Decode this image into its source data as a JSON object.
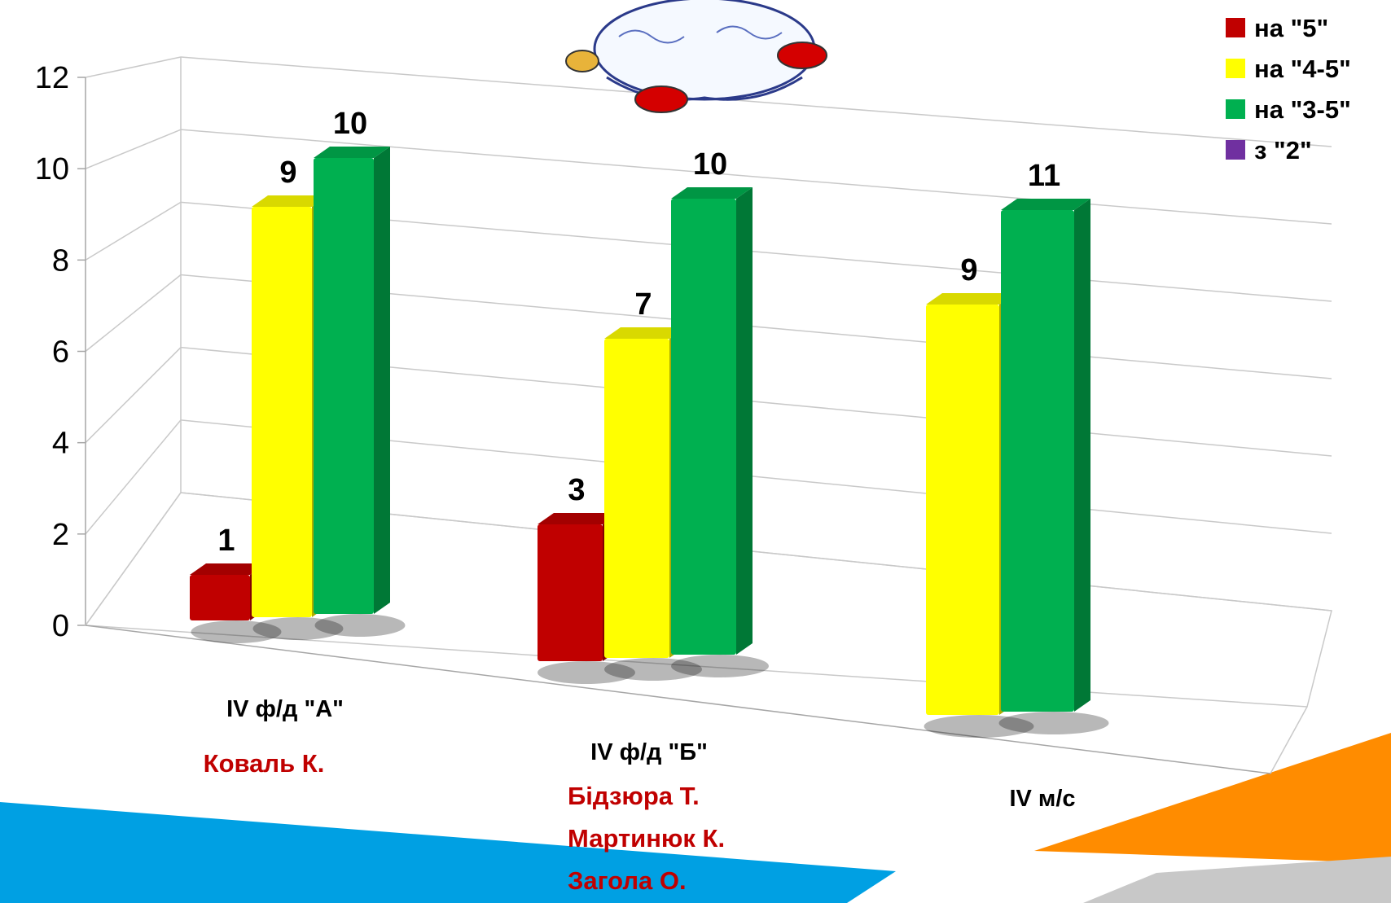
{
  "chart_data": {
    "type": "bar",
    "title": "",
    "xlabel": "",
    "ylabel": "",
    "ylim": [
      0,
      12
    ],
    "yticks": [
      0,
      2,
      4,
      6,
      8,
      10,
      12
    ],
    "grid": true,
    "legend_position": "top-right",
    "categories": [
      "IV ф/д \"А\"",
      "IV ф/д \"Б\"",
      "IV м/с"
    ],
    "series": [
      {
        "name": "на \"5\"",
        "color": "#c00000",
        "values": [
          1,
          3,
          null
        ]
      },
      {
        "name": "на \"4-5\"",
        "color": "#ffff00",
        "values": [
          9,
          7,
          9
        ]
      },
      {
        "name": "на \"3-5\"",
        "color": "#00b050",
        "values": [
          10,
          10,
          11
        ]
      },
      {
        "name": "з \"2\"",
        "color": "#7030a0",
        "values": [
          null,
          null,
          null
        ]
      }
    ],
    "category_notes": [
      [
        "Коваль К."
      ],
      [
        "Бідзюра Т.",
        "Мартинюк К.",
        "Загола О."
      ],
      []
    ]
  },
  "colors": {
    "banner_blue": "#00a0e3",
    "banner_orange": "#ff8c00",
    "banner_gray": "#c8c8c8",
    "student_red": "#c00000"
  },
  "decoration": "cartoon-book-icon"
}
